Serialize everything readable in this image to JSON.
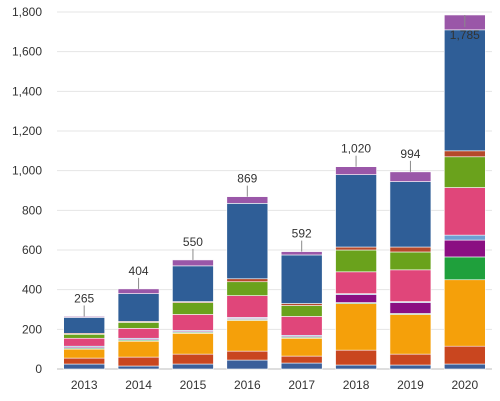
{
  "chart_data": {
    "type": "bar",
    "stacked": true,
    "title": "",
    "xlabel": "",
    "ylabel": "",
    "ylim": [
      0,
      1800
    ],
    "y_ticks": [
      0,
      200,
      400,
      600,
      800,
      1000,
      1200,
      1400,
      1600,
      1800
    ],
    "y_tick_labels": [
      "0",
      "200",
      "400",
      "600",
      "800",
      "1,000",
      "1,200",
      "1,400",
      "1,600",
      "1,800"
    ],
    "grid": true,
    "legend": "none",
    "categories": [
      "2013",
      "2014",
      "2015",
      "2016",
      "2017",
      "2018",
      "2019",
      "2020"
    ],
    "totals": [
      265,
      404,
      550,
      869,
      592,
      1020,
      994,
      1785
    ],
    "total_labels": [
      "265",
      "404",
      "550",
      "869",
      "592",
      "1,020",
      "994",
      "1,785"
    ],
    "series": [
      {
        "color": "#3a5f9a",
        "values": [
          25,
          15,
          25,
          45,
          30,
          20,
          20,
          25
        ]
      },
      {
        "color": "#c9461f",
        "values": [
          30,
          45,
          50,
          45,
          35,
          75,
          55,
          90
        ]
      },
      {
        "color": "#f5a00a",
        "values": [
          45,
          80,
          105,
          155,
          90,
          235,
          200,
          335
        ]
      },
      {
        "color": "#1fa03c",
        "values": [
          5,
          5,
          5,
          5,
          5,
          5,
          5,
          115
        ]
      },
      {
        "color": "#8b0f82",
        "values": [
          5,
          5,
          5,
          5,
          5,
          40,
          55,
          85
        ]
      },
      {
        "color": "#6e9fd2",
        "values": [
          5,
          5,
          5,
          5,
          5,
          5,
          5,
          25
        ]
      },
      {
        "color": "#e0467a",
        "values": [
          40,
          50,
          80,
          110,
          95,
          110,
          160,
          240
        ]
      },
      {
        "color": "#6aa21c",
        "values": [
          20,
          30,
          60,
          70,
          55,
          110,
          90,
          155
        ]
      },
      {
        "color": "#b5492a",
        "values": [
          5,
          5,
          5,
          15,
          10,
          15,
          25,
          30
        ]
      },
      {
        "color": "#2f5e97",
        "values": [
          80,
          140,
          180,
          380,
          245,
          365,
          330,
          610
        ]
      },
      {
        "color": "#9a57a8",
        "values": [
          5,
          24,
          30,
          34,
          17,
          40,
          49,
          75
        ]
      }
    ]
  }
}
